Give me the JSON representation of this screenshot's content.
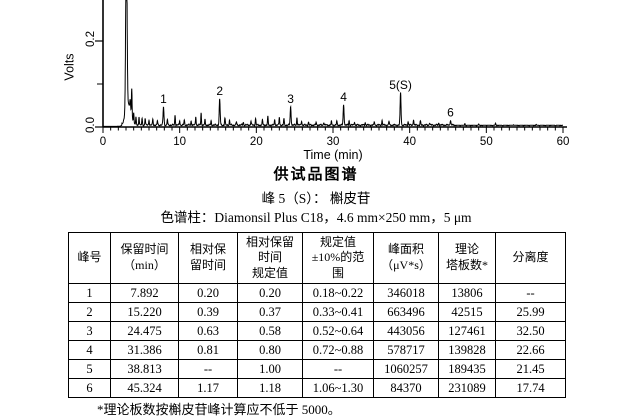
{
  "chart_data": {
    "type": "line",
    "title": "供试品图谱",
    "xlabel": "Time (min)",
    "ylabel": "Volts",
    "xlim": [
      0,
      60
    ],
    "ylim": [
      0,
      0.295
    ],
    "xticks": [
      0,
      10,
      20,
      30,
      40,
      50,
      60
    ],
    "x_minor_tick_interval": 1,
    "yticks": [
      0.0,
      0.2
    ],
    "ytick_labels": [
      "0.0",
      "0.2"
    ],
    "y_minor_ticks": [
      0.1
    ],
    "grid": false,
    "line_color": "#000000",
    "baseline_volts": 0.0045,
    "solvent_front": {
      "time": 3.05,
      "height_volts": 0.42,
      "clipped_at_top": true
    },
    "secondary_front_peak": {
      "time": 3.75,
      "height_volts": 0.062
    },
    "labeled_peaks": [
      {
        "label": "1",
        "time": 7.892,
        "height_volts": 0.042
      },
      {
        "label": "2",
        "time": 15.22,
        "height_volts": 0.06
      },
      {
        "label": "3",
        "time": 24.475,
        "height_volts": 0.042
      },
      {
        "label": "4",
        "time": 31.386,
        "height_volts": 0.047
      },
      {
        "label": "5(S)",
        "time": 38.813,
        "height_volts": 0.075
      },
      {
        "label": "6",
        "time": 45.324,
        "height_volts": 0.01
      }
    ],
    "noise_bumps": [
      [
        3.55,
        0.02
      ],
      [
        4.0,
        0.022
      ],
      [
        4.3,
        0.016
      ],
      [
        4.7,
        0.02
      ],
      [
        5.1,
        0.014
      ],
      [
        5.5,
        0.016
      ],
      [
        6.0,
        0.012
      ],
      [
        6.5,
        0.014
      ],
      [
        7.1,
        0.01
      ],
      [
        8.4,
        0.012
      ],
      [
        9.4,
        0.024
      ],
      [
        10.0,
        0.01
      ],
      [
        10.6,
        0.012
      ],
      [
        11.5,
        0.01
      ],
      [
        12.1,
        0.02
      ],
      [
        12.8,
        0.028
      ],
      [
        13.3,
        0.012
      ],
      [
        14.1,
        0.009
      ],
      [
        15.9,
        0.016
      ],
      [
        16.5,
        0.01
      ],
      [
        17.4,
        0.007
      ],
      [
        18.3,
        0.007
      ],
      [
        19.3,
        0.009
      ],
      [
        19.9,
        0.016
      ],
      [
        20.8,
        0.012
      ],
      [
        21.5,
        0.02
      ],
      [
        22.4,
        0.013
      ],
      [
        23.0,
        0.018
      ],
      [
        23.6,
        0.015
      ],
      [
        25.3,
        0.018
      ],
      [
        25.9,
        0.01
      ],
      [
        26.8,
        0.007
      ],
      [
        27.8,
        0.006
      ],
      [
        28.8,
        0.007
      ],
      [
        29.8,
        0.008
      ],
      [
        30.5,
        0.009
      ],
      [
        32.1,
        0.011
      ],
      [
        32.8,
        0.008
      ],
      [
        34.2,
        0.006
      ],
      [
        35.4,
        0.007
      ],
      [
        36.4,
        0.011
      ],
      [
        37.3,
        0.009
      ],
      [
        39.8,
        0.008
      ],
      [
        40.5,
        0.013
      ],
      [
        41.4,
        0.009
      ],
      [
        42.6,
        0.006
      ],
      [
        43.8,
        0.005
      ],
      [
        47.2,
        0.004
      ],
      [
        49.0,
        0.003
      ],
      [
        51.2,
        0.005
      ],
      [
        53.5,
        0.002
      ],
      [
        56.5,
        0.002
      ]
    ]
  },
  "captions": {
    "figure_title": "供试品图谱",
    "peak_identity": "峰 5（S）： 槲皮苷",
    "column_info": "色谱柱：Diamonsil Plus C18，4.6 mm×250 mm，5 μm"
  },
  "table": {
    "headers": [
      "峰号",
      "保留时间\n（min）",
      "相对保\n留时间",
      "相对保留\n时间\n规定值",
      "规定值\n±10%的范\n围",
      "峰面积\n（μV*s）",
      "理论\n塔板数*",
      "分离度"
    ],
    "rows": [
      [
        "1",
        "7.892",
        "0.20",
        "0.20",
        "0.18~0.22",
        "346018",
        "13806",
        "--"
      ],
      [
        "2",
        "15.220",
        "0.39",
        "0.37",
        "0.33~0.41",
        "663496",
        "42515",
        "25.99"
      ],
      [
        "3",
        "24.475",
        "0.63",
        "0.58",
        "0.52~0.64",
        "443056",
        "127461",
        "32.50"
      ],
      [
        "4",
        "31.386",
        "0.81",
        "0.80",
        "0.72~0.88",
        "578717",
        "139828",
        "22.66"
      ],
      [
        "5",
        "38.813",
        "--",
        "1.00",
        "--",
        "1060257",
        "189435",
        "21.45"
      ],
      [
        "6",
        "45.324",
        "1.17",
        "1.18",
        "1.06~1.30",
        "84370",
        "231089",
        "17.74"
      ]
    ],
    "footnote": "*理论板数按槲皮苷峰计算应不低于 5000。"
  }
}
